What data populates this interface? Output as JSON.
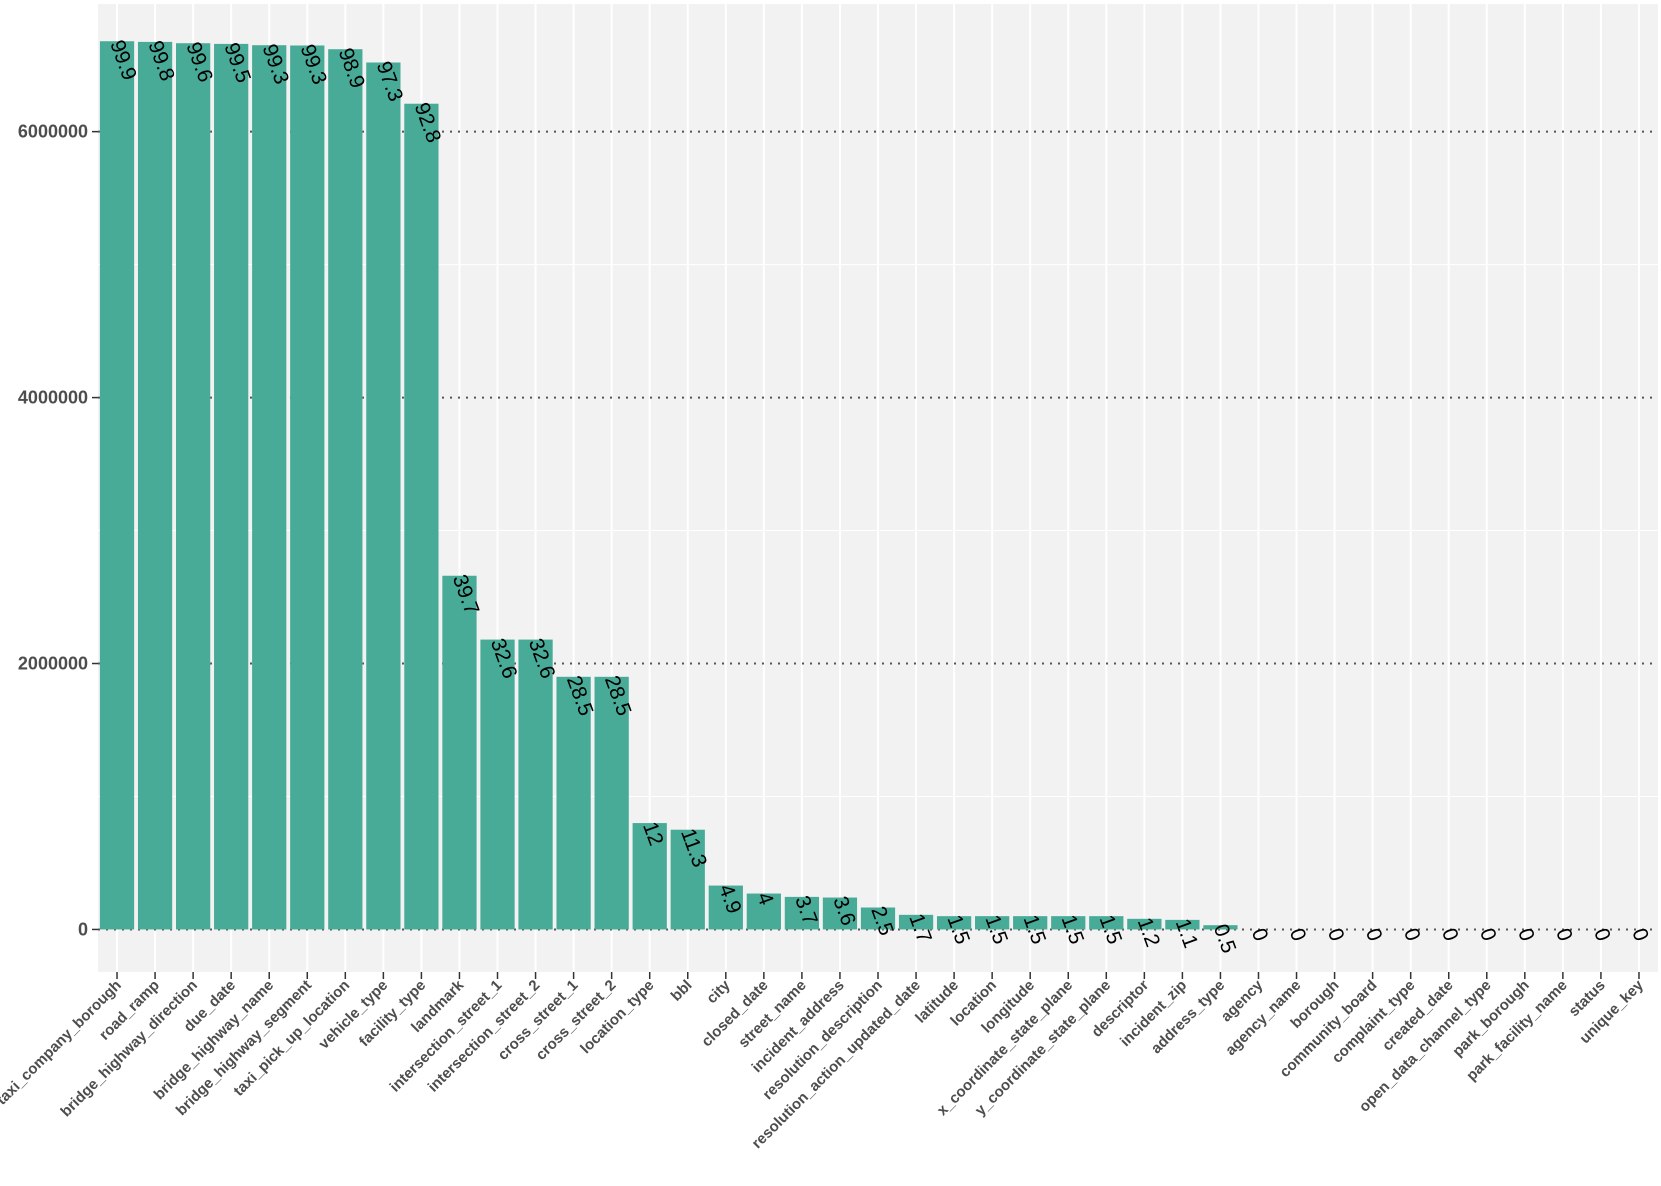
{
  "chart_data": {
    "type": "bar",
    "title": "",
    "xlabel": "",
    "ylabel": "",
    "ylim": [
      -320000,
      6960000
    ],
    "yticks": [
      0,
      2000000,
      4000000,
      6000000
    ],
    "ytick_labels": [
      "0",
      "2000000",
      "4000000",
      "6000000"
    ],
    "grid": true,
    "bar_color": "#48ab98",
    "panel_color": "#f2f2f2",
    "categories": [
      "taxi_company_borough",
      "road_ramp",
      "bridge_highway_direction",
      "due_date",
      "bridge_highway_name",
      "bridge_highway_segment",
      "taxi_pick_up_location",
      "vehicle_type",
      "facility_type",
      "landmark",
      "intersection_street_1",
      "intersection_street_2",
      "cross_street_1",
      "cross_street_2",
      "location_type",
      "bbl",
      "city",
      "closed_date",
      "street_name",
      "incident_address",
      "resolution_description",
      "resolution_action_updated_date",
      "latitude",
      "location",
      "longitude",
      "x_coordinate_state_plane",
      "y_coordinate_state_plane",
      "descriptor",
      "incident_zip",
      "address_type",
      "agency",
      "agency_name",
      "borough",
      "community_board",
      "complaint_type",
      "created_date",
      "open_data_channel_type",
      "park_borough",
      "park_facility_name",
      "status",
      "unique_key"
    ],
    "values": [
      6680000,
      6675000,
      6665000,
      6660000,
      6650000,
      6648000,
      6620000,
      6520000,
      6210000,
      2660000,
      2180000,
      2180000,
      1900000,
      1900000,
      800000,
      750000,
      330000,
      270000,
      245000,
      240000,
      165000,
      110000,
      100000,
      100000,
      100000,
      100000,
      100000,
      80000,
      72000,
      32000,
      0,
      0,
      0,
      0,
      0,
      0,
      0,
      0,
      0,
      0,
      0
    ],
    "data_labels": [
      "99.9",
      "99.8",
      "99.6",
      "99.5",
      "99.3",
      "99.3",
      "98.9",
      "97.3",
      "92.8",
      "39.7",
      "32.6",
      "32.6",
      "28.5",
      "28.5",
      "12",
      "11.3",
      "4.9",
      "4",
      "3.7",
      "3.6",
      "2.5",
      "1.7",
      "1.5",
      "1.5",
      "1.5",
      "1.5",
      "1.5",
      "1.2",
      "1.1",
      "0.5",
      "0",
      "0",
      "0",
      "0",
      "0",
      "0",
      "0",
      "0",
      "0",
      "0",
      "0"
    ]
  }
}
